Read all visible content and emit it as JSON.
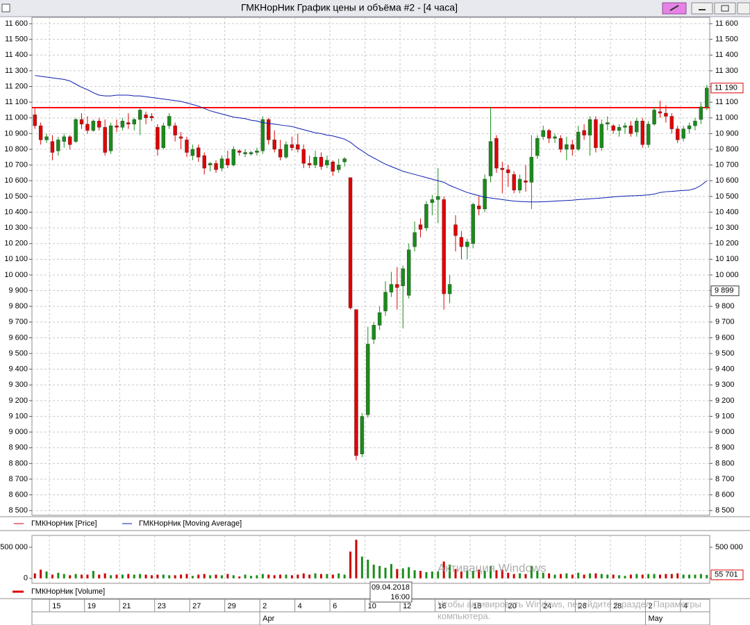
{
  "window_title": "ГМКНорНик График цены и объёма #2 - [4 часа]",
  "crosshair": {
    "date": "09.04.2018",
    "time": "16:00"
  },
  "watermark": {
    "title": "Активация Windows",
    "line1": "Чтобы активировать Windows, перейдите в раздел Параметры",
    "line2": "компьютера."
  },
  "chart_data": [
    {
      "type": "candlestick",
      "categories": [
        null,
        null,
        null,
        "15",
        null,
        null,
        null,
        null,
        null,
        "19",
        null,
        null,
        null,
        null,
        null,
        "21",
        null,
        null,
        null,
        null,
        null,
        "23",
        null,
        null,
        null,
        null,
        null,
        "27",
        null,
        null,
        null,
        null,
        null,
        "29",
        null,
        null,
        null,
        null,
        null,
        "2",
        null,
        null,
        null,
        null,
        null,
        "4",
        null,
        null,
        null,
        null,
        null,
        "6",
        null,
        null,
        null,
        null,
        null,
        "10",
        null,
        null,
        null,
        null,
        null,
        "12",
        null,
        null,
        null,
        null,
        null,
        "16",
        null,
        null,
        null,
        null,
        null,
        "18",
        null,
        null,
        null,
        null,
        null,
        "20",
        null,
        null,
        null,
        null,
        null,
        "24",
        null,
        null,
        null,
        null,
        null,
        "26",
        null,
        null,
        null,
        null,
        null,
        "28",
        null,
        null,
        null,
        null,
        null,
        "2",
        null,
        null,
        null,
        null,
        null,
        "4",
        null,
        null,
        null,
        null
      ],
      "month_ticks": [
        {
          "value": 39,
          "label": "Apr"
        },
        {
          "value": 105,
          "label": "May"
        }
      ],
      "ylim": [
        8470,
        11640
      ],
      "yticks": [
        {
          "value": 8500,
          "label": "8 500"
        },
        {
          "value": 8600,
          "label": "8 600"
        },
        {
          "value": 8700,
          "label": "8 700"
        },
        {
          "value": 8800,
          "label": "8 800"
        },
        {
          "value": 8900,
          "label": "8 900"
        },
        {
          "value": 9000,
          "label": "9 000"
        },
        {
          "value": 9100,
          "label": "9 100"
        },
        {
          "value": 9200,
          "label": "9 200"
        },
        {
          "value": 9300,
          "label": "9 300"
        },
        {
          "value": 9400,
          "label": "9 400"
        },
        {
          "value": 9500,
          "label": "9 500"
        },
        {
          "value": 9600,
          "label": "9 600"
        },
        {
          "value": 9700,
          "label": "9 700"
        },
        {
          "value": 9800,
          "label": "9 800"
        },
        {
          "value": 9900,
          "label": "9 900"
        },
        {
          "value": 10000,
          "label": "10 000"
        },
        {
          "value": 10100,
          "label": "10 100"
        },
        {
          "value": 10200,
          "label": "10 200"
        },
        {
          "value": 10300,
          "label": "10 300"
        },
        {
          "value": 10400,
          "label": "10 400"
        },
        {
          "value": 10500,
          "label": "10 500"
        },
        {
          "value": 10600,
          "label": "10 600"
        },
        {
          "value": 10700,
          "label": "10 700"
        },
        {
          "value": 10800,
          "label": "10 800"
        },
        {
          "value": 10900,
          "label": "10 900"
        },
        {
          "value": 11000,
          "label": "11 000"
        },
        {
          "value": 11100,
          "label": "11 100"
        },
        {
          "value": 11200,
          "label": "11 200"
        },
        {
          "value": 11300,
          "label": "11 300"
        },
        {
          "value": 11400,
          "label": "11 400"
        },
        {
          "value": 11500,
          "label": "11 500"
        },
        {
          "value": 11600,
          "label": "11 600"
        }
      ],
      "grid": true,
      "level_line": {
        "value": 11065,
        "color": "#ff0000"
      },
      "marker": {
        "value": 9899,
        "label": "9 899"
      },
      "series": [
        {
          "name": "ГМКНорНик [Price]",
          "color": "#cc0000",
          "up_color": "#1a8c1a",
          "down_color": "#e00000",
          "open": [
            11020,
            10950,
            10860,
            10850,
            10790,
            10850,
            10880,
            10850,
            10990,
            10960,
            10920,
            10980,
            10940,
            10790,
            10950,
            10940,
            10970,
            10960,
            10990,
            11020,
            11010,
            10940,
            10810,
            10950,
            10950,
            10880,
            10860,
            10760,
            10810,
            10760,
            10700,
            10710,
            10680,
            10740,
            10700,
            10790,
            10770,
            10770,
            10780,
            10790,
            10990,
            10860,
            10800,
            10750,
            10830,
            10830,
            10800,
            10710,
            10700,
            10750,
            10700,
            10720,
            10670,
            10720,
            10620,
            9780,
            8860,
            9110,
            9590,
            9680,
            9770,
            9890,
            9940,
            9930,
            9870,
            10180,
            10320,
            10300,
            10460,
            10480,
            10480,
            9880,
            10320,
            10240,
            10180,
            10200,
            10440,
            10420,
            10630,
            10870,
            10680,
            10670,
            10640,
            10540,
            10600,
            10590,
            10760,
            10880,
            10920,
            10870,
            10870,
            10800,
            10830,
            10800,
            10920,
            10890,
            10990,
            10810,
            10960,
            10950,
            10920,
            10940,
            10950,
            10910,
            10980,
            10830,
            10960,
            11040,
            11030,
            11010,
            10930,
            10870,
            10930,
            10950,
            10990,
            11070
          ],
          "high": [
            11060,
            10970,
            10900,
            10890,
            10880,
            10900,
            10890,
            11000,
            11030,
            11010,
            10990,
            11000,
            10990,
            10970,
            10990,
            11000,
            11030,
            11000,
            11060,
            11040,
            11030,
            10960,
            10970,
            11030,
            10970,
            10910,
            10880,
            10830,
            10830,
            10780,
            10720,
            10730,
            10760,
            10790,
            10820,
            10800,
            10800,
            10790,
            10810,
            11010,
            11000,
            10920,
            10860,
            10850,
            10880,
            10900,
            10830,
            10760,
            10790,
            10780,
            10760,
            10730,
            10740,
            10750,
            10620,
            9780,
            9120,
            9670,
            9700,
            9800,
            9960,
            10020,
            10050,
            10060,
            10200,
            10340,
            10360,
            10470,
            10510,
            10680,
            10500,
            10000,
            10380,
            10280,
            10230,
            10460,
            10500,
            10640,
            11070,
            10890,
            10720,
            10700,
            10660,
            10640,
            10700,
            10890,
            10890,
            10950,
            10930,
            10900,
            10890,
            10880,
            10860,
            10950,
            10960,
            11010,
            11010,
            10990,
            11010,
            10960,
            10960,
            10970,
            10980,
            11000,
            11000,
            10980,
            11070,
            11110,
            11080,
            11030,
            10950,
            10950,
            10970,
            11000,
            11100,
            11210
          ],
          "low": [
            10930,
            10830,
            10840,
            10730,
            10760,
            10810,
            10800,
            10840,
            10930,
            10900,
            10910,
            10920,
            10760,
            10770,
            10910,
            10920,
            10930,
            10920,
            10890,
            10960,
            10980,
            10760,
            10800,
            10930,
            10850,
            10800,
            10750,
            10730,
            10720,
            10640,
            10660,
            10650,
            10660,
            10680,
            10690,
            10760,
            10750,
            10760,
            10760,
            10770,
            10830,
            10780,
            10730,
            10740,
            10790,
            10780,
            10680,
            10680,
            10680,
            10670,
            10680,
            10630,
            10650,
            10690,
            9780,
            8820,
            8840,
            9090,
            9560,
            9650,
            9740,
            9860,
            9780,
            9660,
            9850,
            10150,
            10240,
            10280,
            10380,
            10330,
            9780,
            9820,
            10150,
            10100,
            10100,
            10170,
            10380,
            10400,
            10590,
            10650,
            10520,
            10560,
            10520,
            10520,
            10530,
            10420,
            10740,
            10860,
            10840,
            10840,
            10780,
            10730,
            10760,
            10790,
            10860,
            10760,
            10780,
            10790,
            10920,
            10900,
            10880,
            10900,
            10880,
            10880,
            10810,
            10810,
            10950,
            11000,
            10970,
            10900,
            10840,
            10850,
            10900,
            10920,
            10960,
            11050
          ],
          "close": [
            10950,
            10860,
            10880,
            10780,
            10860,
            10880,
            10830,
            10990,
            10960,
            10920,
            10980,
            10940,
            10780,
            10950,
            10940,
            10980,
            10960,
            10990,
            11050,
            11000,
            11000,
            10800,
            10950,
            11010,
            10890,
            10870,
            10780,
            10800,
            10750,
            10680,
            10710,
            10670,
            10740,
            10700,
            10800,
            10780,
            10780,
            10780,
            10790,
            10990,
            10860,
            10800,
            10750,
            10830,
            10810,
            10800,
            10710,
            10700,
            10750,
            10690,
            10730,
            10660,
            10700,
            10740,
            9790,
            8850,
            9100,
            9560,
            9680,
            9760,
            9890,
            9940,
            9920,
            10040,
            10160,
            10270,
            10290,
            10450,
            10480,
            10500,
            9880,
            9940,
            10250,
            10180,
            10210,
            10450,
            10420,
            10610,
            10850,
            10680,
            10670,
            10650,
            10540,
            10610,
            10590,
            10750,
            10870,
            10920,
            10870,
            10880,
            10800,
            10830,
            10800,
            10910,
            10890,
            10990,
            10810,
            10960,
            10970,
            10920,
            10940,
            10950,
            10900,
            10980,
            10830,
            10960,
            11050,
            11030,
            11010,
            10930,
            10860,
            10930,
            10950,
            10980,
            11070,
            11190
          ],
          "last_value_label": "11 190"
        },
        {
          "name": "ГМКНорНик [Moving Average]",
          "type": "line",
          "color": "#0a1ab0",
          "values": [
            11270,
            11265,
            11260,
            11255,
            11250,
            11245,
            11235,
            11215,
            11195,
            11180,
            11160,
            11145,
            11140,
            11140,
            11145,
            11145,
            11145,
            11140,
            11140,
            11135,
            11130,
            11125,
            11120,
            11115,
            11110,
            11105,
            11095,
            11085,
            11075,
            11060,
            11045,
            11035,
            11025,
            11015,
            11005,
            11000,
            10995,
            10985,
            10980,
            10970,
            10965,
            10960,
            10955,
            10950,
            10945,
            10935,
            10925,
            10915,
            10905,
            10900,
            10890,
            10885,
            10875,
            10865,
            10845,
            10815,
            10790,
            10765,
            10745,
            10725,
            10705,
            10690,
            10675,
            10660,
            10650,
            10640,
            10630,
            10620,
            10610,
            10600,
            10590,
            10570,
            10555,
            10540,
            10525,
            10515,
            10505,
            10495,
            10490,
            10485,
            10480,
            10475,
            10470,
            10468,
            10466,
            10465,
            10465,
            10466,
            10468,
            10470,
            10472,
            10474,
            10476,
            10480,
            10482,
            10485,
            10487,
            10490,
            10493,
            10497,
            10500,
            10502,
            10504,
            10505,
            10507,
            10510,
            10515,
            10525,
            10530,
            10532,
            10535,
            10538,
            10540,
            10550,
            10570,
            10600
          ]
        }
      ]
    },
    {
      "type": "bar",
      "ylim": [
        -80000,
        690000
      ],
      "yticks": [
        0,
        {
          "value": 500000,
          "label": "500 000"
        }
      ],
      "series": [
        {
          "name": "ГМКНорНик [Volume]",
          "color": "#dd0000",
          "up_color": "#1a8c1a",
          "down_color": "#cc0000",
          "values": [
            80000,
            140000,
            110000,
            60000,
            90000,
            70000,
            50000,
            70000,
            60000,
            60000,
            120000,
            60000,
            80000,
            50000,
            60000,
            60000,
            70000,
            60000,
            70000,
            60000,
            50000,
            60000,
            60000,
            50000,
            50000,
            60000,
            70000,
            40000,
            60000,
            70000,
            50000,
            60000,
            50000,
            70000,
            50000,
            30000,
            60000,
            40000,
            50000,
            70000,
            60000,
            50000,
            60000,
            60000,
            50000,
            60000,
            80000,
            60000,
            80000,
            70000,
            70000,
            60000,
            80000,
            60000,
            430000,
            620000,
            350000,
            300000,
            220000,
            200000,
            170000,
            230000,
            150000,
            160000,
            180000,
            130000,
            120000,
            100000,
            110000,
            110000,
            270000,
            220000,
            150000,
            110000,
            130000,
            120000,
            140000,
            120000,
            200000,
            130000,
            140000,
            90000,
            70000,
            80000,
            70000,
            200000,
            120000,
            90000,
            80000,
            60000,
            70000,
            80000,
            60000,
            90000,
            60000,
            80000,
            80000,
            70000,
            60000,
            60000,
            50000,
            40000,
            60000,
            70000,
            60000,
            70000,
            70000,
            60000,
            70000,
            70000,
            80000,
            60000,
            60000,
            60000,
            70000,
            55701
          ],
          "last_value_label": "55 701"
        }
      ]
    }
  ]
}
